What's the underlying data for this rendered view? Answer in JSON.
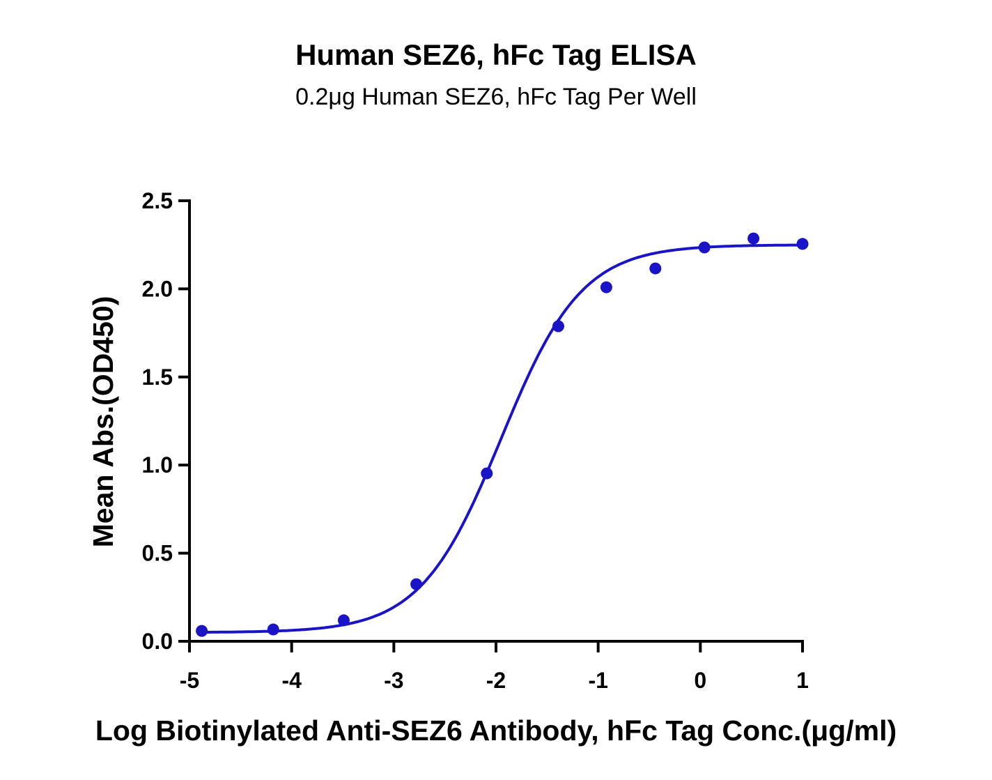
{
  "chart_data": {
    "type": "scatter",
    "title": "Human SEZ6, hFc Tag ELISA",
    "subtitle": "0.2μg Human SEZ6, hFc Tag Per Well",
    "xlabel": "Log Biotinylated Anti-SEZ6 Antibody, hFc Tag Conc.(μg/ml)",
    "ylabel": "Mean Abs.(OD450)",
    "xlim": [
      -5,
      1
    ],
    "ylim": [
      0,
      2.5
    ],
    "xticks": [
      -5,
      -4,
      -3,
      -2,
      -1,
      0,
      1
    ],
    "xtick_labels": [
      "-5",
      "-4",
      "-3",
      "-2",
      "-1",
      "0",
      "1"
    ],
    "yticks": [
      0,
      0.5,
      1,
      1.5,
      2,
      2.5
    ],
    "ytick_labels": [
      "0.0",
      "0.5",
      "1.0",
      "1.5",
      "2.0",
      "2.5"
    ],
    "grid": false,
    "color": "#1a14c8",
    "series": [
      {
        "name": "Mean Abs.",
        "x": [
          -4.88,
          -4.18,
          -3.49,
          -2.78,
          -2.09,
          -1.39,
          -0.92,
          -0.44,
          0.04,
          0.52,
          1.0
        ],
        "y": [
          0.059,
          0.067,
          0.119,
          0.324,
          0.953,
          1.788,
          2.009,
          2.116,
          2.235,
          2.286,
          2.255
        ]
      }
    ],
    "fit": {
      "model": "4PL",
      "bottom": 0.05,
      "top": 2.25,
      "logEC50": -1.95,
      "hill": 1.1
    }
  }
}
